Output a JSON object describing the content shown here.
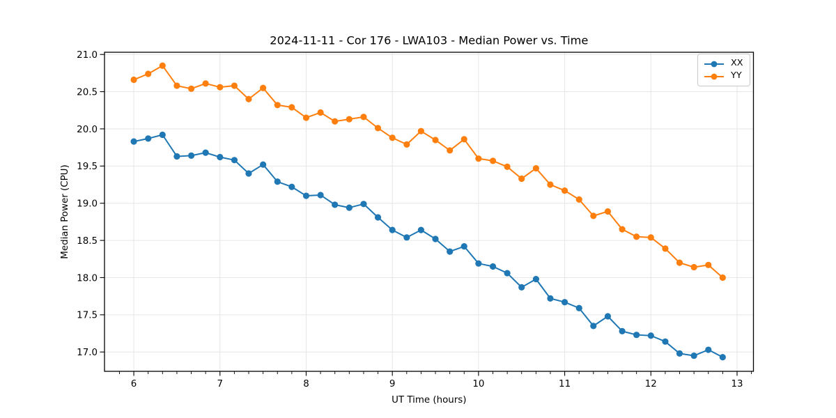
{
  "chart_data": {
    "type": "line",
    "title": "2024-11-11 - Cor 176 - LWA103 - Median Power vs. Time",
    "xlabel": "UT Time (hours)",
    "ylabel": "Median Power (CPU)",
    "x": [
      6.0,
      6.167,
      6.333,
      6.5,
      6.667,
      6.833,
      7.0,
      7.167,
      7.333,
      7.5,
      7.667,
      7.833,
      8.0,
      8.167,
      8.333,
      8.5,
      8.667,
      8.833,
      9.0,
      9.167,
      9.333,
      9.5,
      9.667,
      9.833,
      10.0,
      10.167,
      10.333,
      10.5,
      10.667,
      10.833,
      11.0,
      11.167,
      11.333,
      11.5,
      11.667,
      11.833,
      12.0,
      12.167,
      12.333,
      12.5,
      12.667,
      12.833
    ],
    "series": [
      {
        "name": "XX",
        "color": "#1f77b4",
        "values": [
          19.83,
          19.87,
          19.92,
          19.63,
          19.64,
          19.68,
          19.62,
          19.58,
          19.4,
          19.52,
          19.29,
          19.22,
          19.1,
          19.11,
          18.98,
          18.94,
          18.99,
          18.81,
          18.64,
          18.54,
          18.64,
          18.52,
          18.35,
          18.42,
          18.19,
          18.15,
          18.06,
          17.87,
          17.98,
          17.72,
          17.67,
          17.59,
          17.35,
          17.48,
          17.28,
          17.23,
          17.22,
          17.14,
          16.98,
          16.95,
          17.03,
          16.93
        ]
      },
      {
        "name": "YY",
        "color": "#ff7f0e",
        "values": [
          20.66,
          20.74,
          20.85,
          20.58,
          20.54,
          20.61,
          20.56,
          20.58,
          20.4,
          20.55,
          20.32,
          20.29,
          20.15,
          20.22,
          20.1,
          20.13,
          20.16,
          20.01,
          19.88,
          19.79,
          19.97,
          19.85,
          19.71,
          19.86,
          19.6,
          19.57,
          19.49,
          19.33,
          19.47,
          19.25,
          19.17,
          19.05,
          18.83,
          18.89,
          18.65,
          18.55,
          18.54,
          18.39,
          18.2,
          18.14,
          18.17,
          18.0
        ]
      }
    ],
    "xlim": [
      5.66,
      13.19
    ],
    "ylim": [
      16.74,
      21.03
    ],
    "x_ticks": [
      6,
      7,
      8,
      9,
      10,
      11,
      12,
      13
    ],
    "x_tick_labels": [
      "6",
      "7",
      "8",
      "9",
      "10",
      "11",
      "12",
      "13"
    ],
    "x_minor_tick_step": 0.1667,
    "y_ticks": [
      17.0,
      17.5,
      18.0,
      18.5,
      19.0,
      19.5,
      20.0,
      20.5,
      21.0
    ],
    "y_tick_labels": [
      "17.0",
      "17.5",
      "18.0",
      "18.5",
      "19.0",
      "19.5",
      "20.0",
      "20.5",
      "21.0"
    ],
    "grid": true,
    "grid_color": "#e6e6e6",
    "frame_color": "#000000",
    "background": "#ffffff",
    "marker": "circle",
    "legend_position": "upper right"
  }
}
